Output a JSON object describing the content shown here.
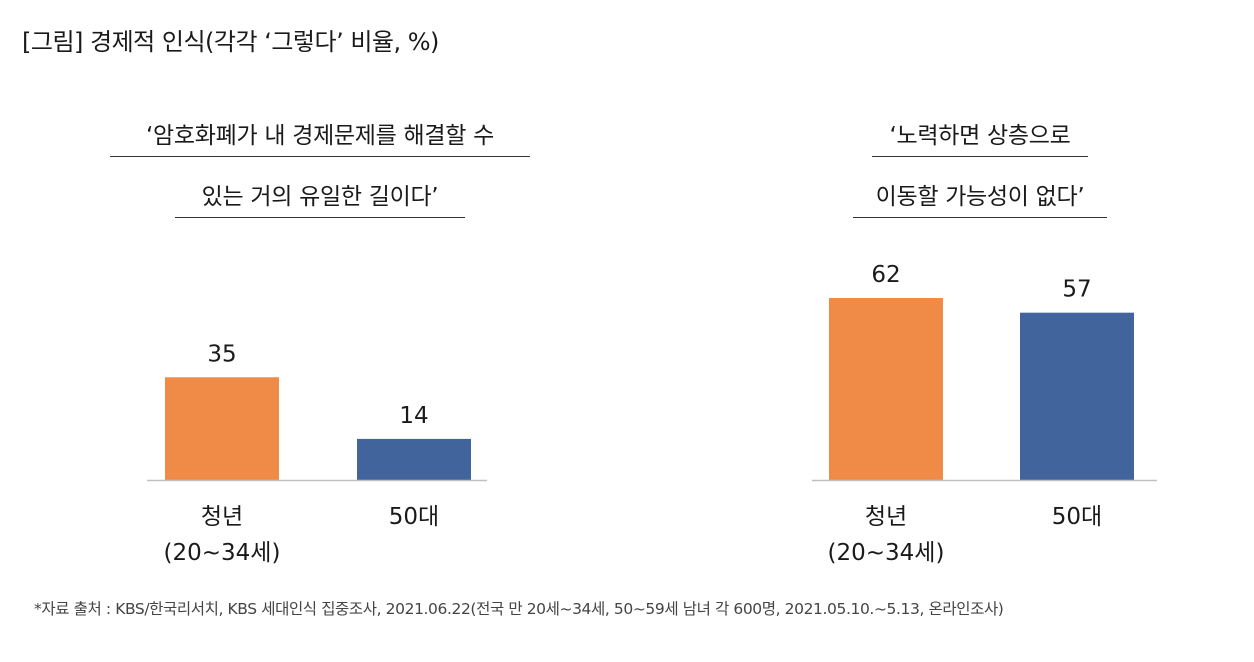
{
  "figure": {
    "title": "[그림] 경제적 인식(각각 ‘그렇다’ 비율, %)",
    "source": "*자료 출처 : KBS/한국리서치, KBS 세대인식 집중조사, 2021.06.22(전국 만 20세~34세, 50~59세 남녀 각 600명, 2021.05.10.~5.13, 온라인조사)"
  },
  "chart_data": [
    {
      "type": "bar",
      "title": [
        "‘암호화폐가 내 경제문제를 해결할 수",
        "있는 거의 유일한 길이다’"
      ],
      "categories": [
        [
          "청년",
          "(20~34세)"
        ],
        [
          "50대"
        ]
      ],
      "values": [
        35,
        14
      ],
      "colors": [
        "#F08A47",
        "#41649D"
      ],
      "ylim": [
        0,
        70
      ],
      "grid": false,
      "legend": "none"
    },
    {
      "type": "bar",
      "title": [
        "‘노력하면 상층으로",
        "이동할 가능성이 없다’"
      ],
      "categories": [
        [
          "청년",
          "(20~34세)"
        ],
        [
          "50대"
        ]
      ],
      "values": [
        62,
        57
      ],
      "colors": [
        "#F08A47",
        "#41649D"
      ],
      "ylim": [
        0,
        70
      ],
      "grid": false,
      "legend": "none"
    }
  ]
}
